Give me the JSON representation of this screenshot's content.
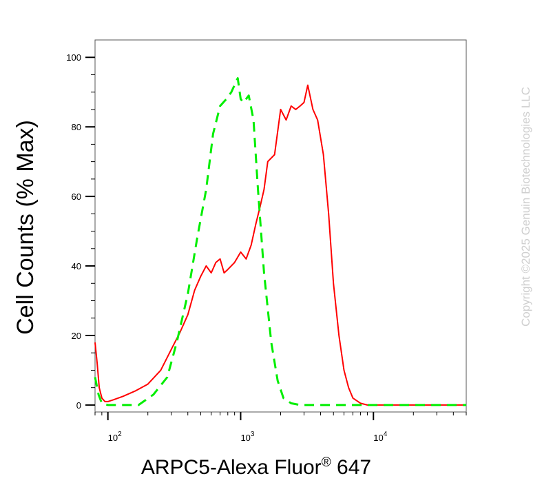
{
  "watermark": "Copyright ©2025 Genuin Biotechnologies LLC",
  "chart_data": {
    "type": "line",
    "title": "",
    "xlabel": "ARPC5-Alexa Fluor",
    "xlabel_superscript": "®",
    "xlabel_suffix": " 647",
    "ylabel": "Cell Counts (% Max)",
    "x_scale": "log",
    "xlim": [
      80,
      50000
    ],
    "ylim": [
      -2,
      105
    ],
    "x_ticks": [
      {
        "value": 100,
        "base": "10",
        "exp": "2"
      },
      {
        "value": 1000,
        "base": "10",
        "exp": "3"
      },
      {
        "value": 10000,
        "base": "10",
        "exp": "4"
      }
    ],
    "y_ticks": [
      {
        "value": 0,
        "label": "0"
      },
      {
        "value": 20,
        "label": "20"
      },
      {
        "value": 40,
        "label": "40"
      },
      {
        "value": 60,
        "label": "60"
      },
      {
        "value": 80,
        "label": "80"
      },
      {
        "value": 100,
        "label": "100"
      }
    ],
    "grid": false,
    "legend": "none",
    "series": [
      {
        "color": "#ff0000",
        "dash": "solid",
        "x": [
          80,
          83,
          86,
          90,
          95,
          100,
          110,
          130,
          160,
          200,
          250,
          300,
          350,
          400,
          450,
          500,
          550,
          600,
          650,
          700,
          750,
          800,
          900,
          1000,
          1100,
          1200,
          1300,
          1400,
          1500,
          1600,
          1800,
          2000,
          2200,
          2400,
          2600,
          2800,
          3000,
          3200,
          3500,
          3800,
          4200,
          4600,
          5000,
          5500,
          6000,
          6500,
          7000,
          8000,
          9000,
          10000,
          11000,
          15000,
          30000,
          50000
        ],
        "y": [
          18,
          12,
          5,
          2,
          1,
          1,
          1.5,
          2.5,
          4,
          6,
          10,
          16,
          21,
          26,
          33,
          37,
          40,
          38,
          41,
          42,
          38,
          39,
          41,
          44,
          42,
          46,
          52,
          57,
          62,
          70,
          72,
          85,
          82,
          86,
          85,
          86,
          87,
          92,
          85,
          82,
          72,
          55,
          35,
          20,
          10,
          5,
          2,
          0.5,
          0,
          0,
          0,
          0,
          0,
          0
        ]
      },
      {
        "color": "#00ee00",
        "dash": "dashed",
        "x": [
          80,
          85,
          90,
          100,
          130,
          170,
          220,
          280,
          330,
          400,
          470,
          550,
          620,
          700,
          780,
          850,
          950,
          1000,
          1050,
          1150,
          1250,
          1350,
          1500,
          1700,
          1900,
          2100,
          2400,
          2800,
          3500,
          5000,
          10000,
          50000
        ],
        "y": [
          8,
          3,
          0.5,
          0,
          0,
          0,
          3,
          8,
          18,
          32,
          48,
          62,
          78,
          86,
          88,
          90,
          94,
          88,
          87,
          89,
          82,
          62,
          38,
          18,
          7,
          2,
          0.5,
          0,
          0,
          0,
          0,
          0
        ]
      }
    ]
  }
}
